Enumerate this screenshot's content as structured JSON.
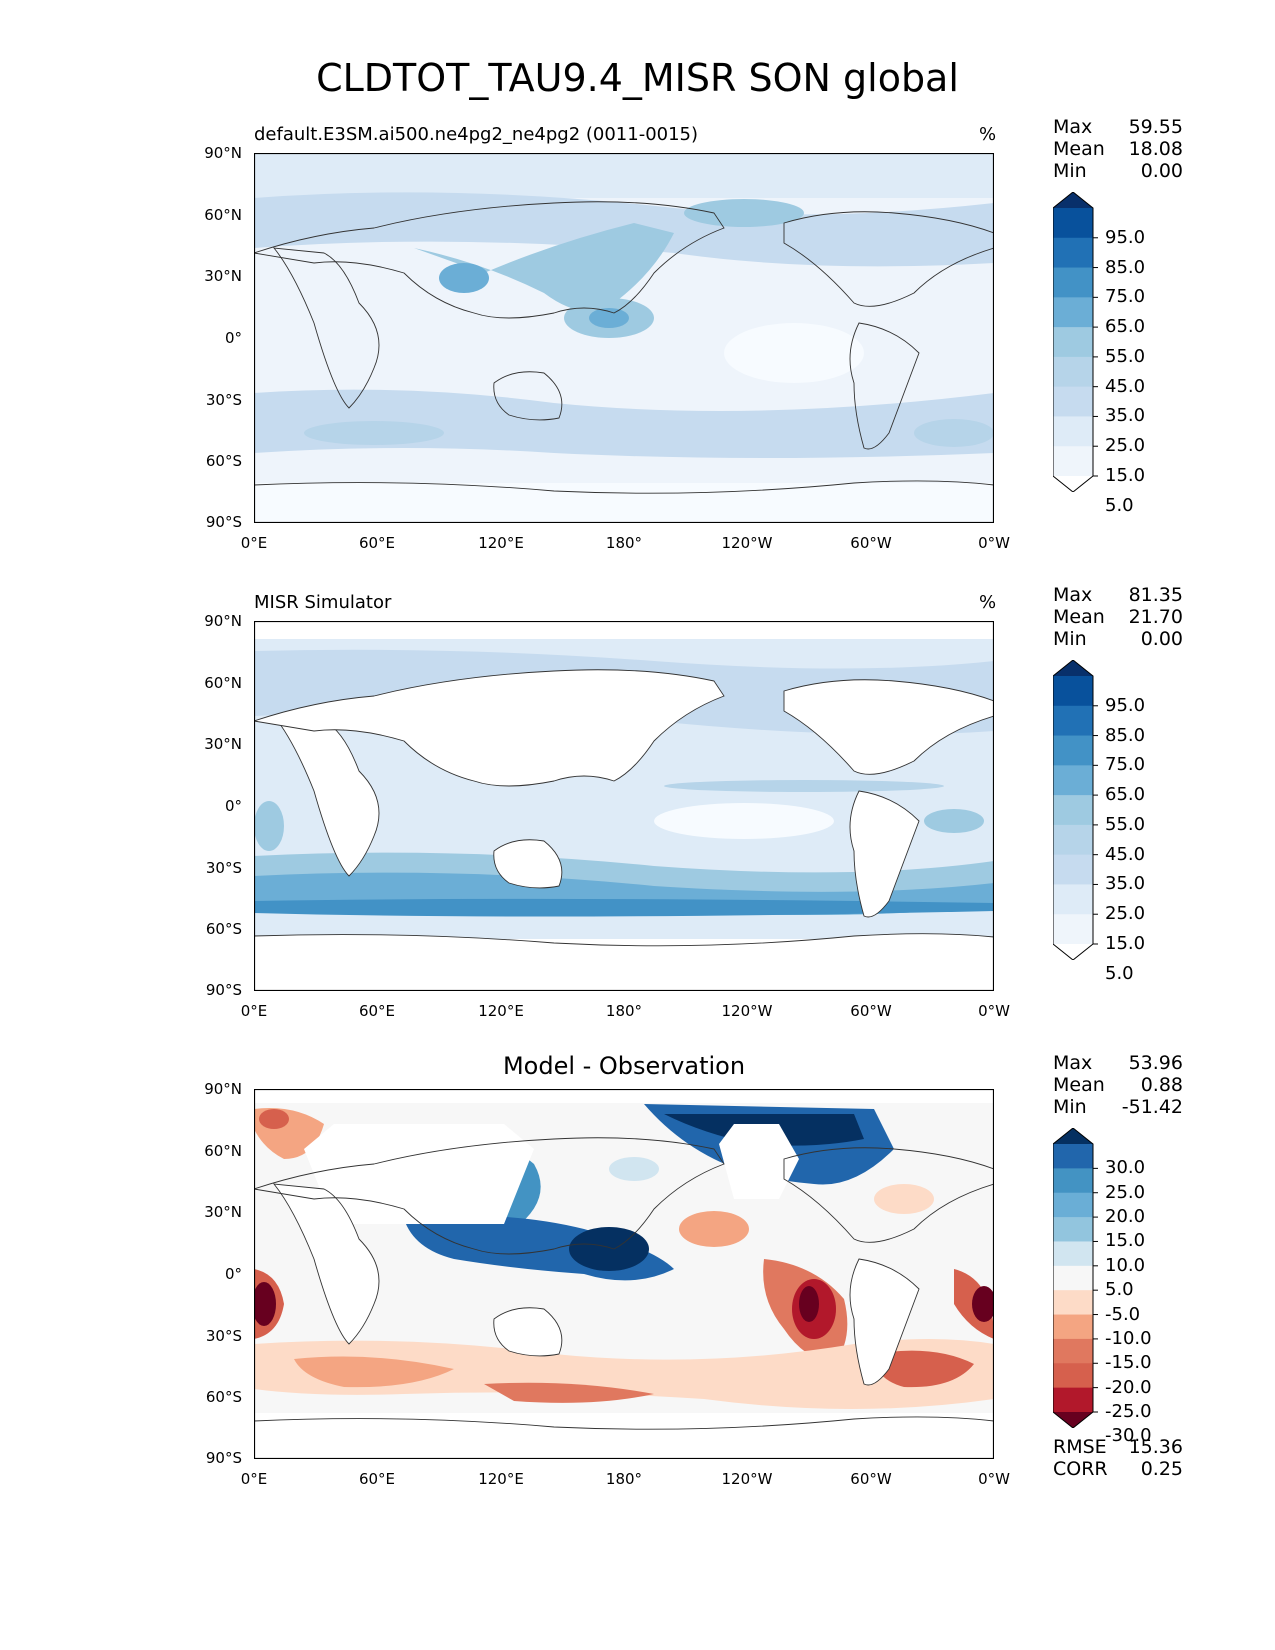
{
  "figure_title": "CLDTOT_TAU9.4_MISR SON global",
  "y_tick_labels": [
    "90°N",
    "60°N",
    "30°N",
    "0°",
    "30°S",
    "60°S",
    "90°S"
  ],
  "x_tick_labels": [
    "0°E",
    "60°E",
    "120°E",
    "180°",
    "120°W",
    "60°W",
    "0°W"
  ],
  "panels": [
    {
      "title": "default.E3SM.ai500.ne4pg2_ne4pg2 (0011-0015)",
      "units": "%",
      "stats": {
        "max_label": "Max",
        "max": "59.55",
        "mean_label": "Mean",
        "mean": "18.08",
        "min_label": "Min",
        "min": "0.00"
      },
      "colorbar": {
        "labels": [
          "95.0",
          "85.0",
          "75.0",
          "65.0",
          "55.0",
          "45.0",
          "35.0",
          "25.0",
          "15.0",
          "5.0"
        ],
        "colors": [
          "#08306b",
          "#08519c",
          "#2171b5",
          "#4292c6",
          "#6baed6",
          "#9ecae1",
          "#b6d4e9",
          "#c6dbef",
          "#deebf7",
          "#eff5fb",
          "#ffffff"
        ]
      }
    },
    {
      "title": "MISR Simulator",
      "units": "%",
      "stats": {
        "max_label": "Max",
        "max": "81.35",
        "mean_label": "Mean",
        "mean": "21.70",
        "min_label": "Min",
        "min": "0.00"
      },
      "colorbar": {
        "labels": [
          "95.0",
          "85.0",
          "75.0",
          "65.0",
          "55.0",
          "45.0",
          "35.0",
          "25.0",
          "15.0",
          "5.0"
        ],
        "colors": [
          "#08306b",
          "#08519c",
          "#2171b5",
          "#4292c6",
          "#6baed6",
          "#9ecae1",
          "#b6d4e9",
          "#c6dbef",
          "#deebf7",
          "#eff5fb",
          "#ffffff"
        ]
      }
    },
    {
      "title": "Model - Observation",
      "units": "",
      "stats": {
        "max_label": "Max",
        "max": "53.96",
        "mean_label": "Mean",
        "mean": "0.88",
        "min_label": "Min",
        "min": "-51.42"
      },
      "extra_stats": {
        "rmse_label": "RMSE",
        "rmse": "15.36",
        "corr_label": "CORR",
        "corr": "0.25"
      },
      "colorbar": {
        "labels": [
          "30.0",
          "25.0",
          "20.0",
          "15.0",
          "10.0",
          "5.0",
          "-5.0",
          "-10.0",
          "-15.0",
          "-20.0",
          "-25.0",
          "-30.0"
        ],
        "colors": [
          "#053061",
          "#2166ac",
          "#4393c3",
          "#6aaed6",
          "#92c5de",
          "#d1e5f0",
          "#f7f7f7",
          "#fddbc7",
          "#f4a582",
          "#e0785f",
          "#d6604d",
          "#b2182b",
          "#67001f"
        ]
      }
    }
  ]
}
